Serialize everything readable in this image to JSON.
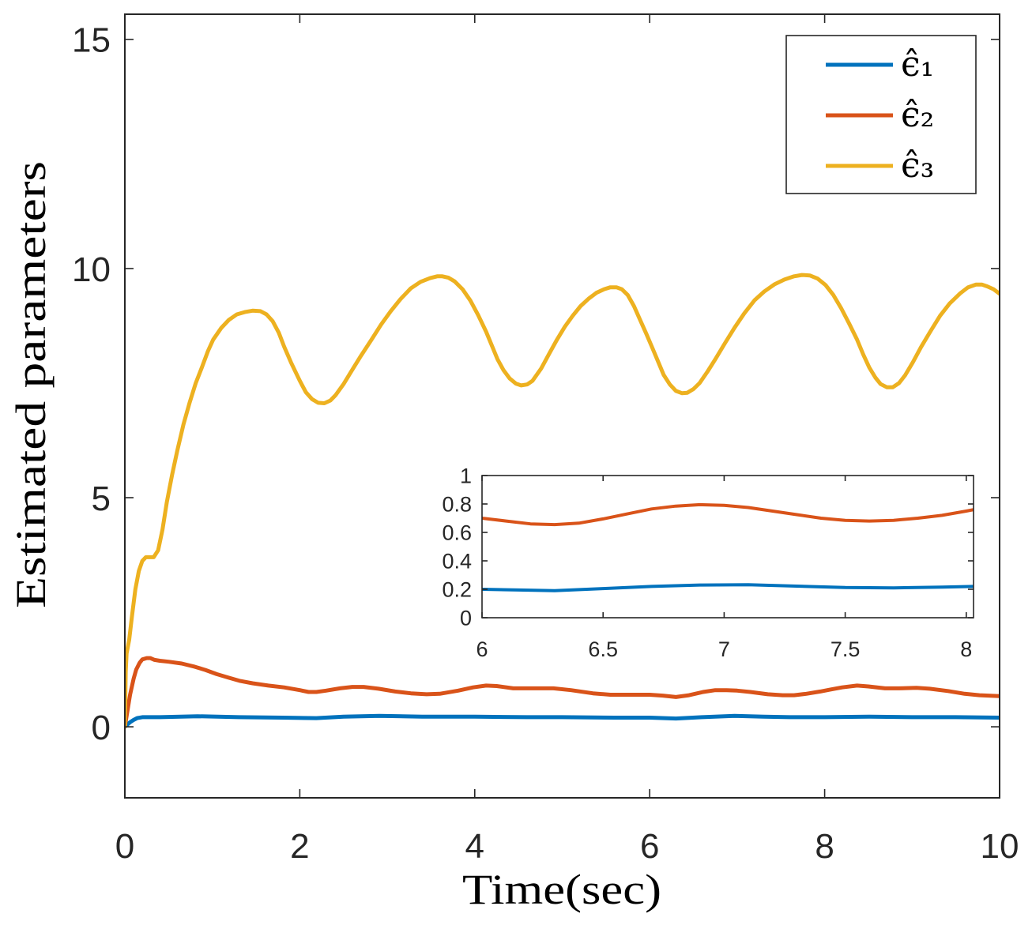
{
  "chart_data": [
    {
      "type": "line",
      "title": "",
      "xlabel": "Time(sec)",
      "ylabel": "Estimated parameters",
      "xlim": [
        0,
        10
      ],
      "ylim": [
        -1.55,
        15.55
      ],
      "xticks": [
        0,
        2,
        4,
        6,
        8,
        10
      ],
      "yticks": [
        0,
        5,
        10,
        15
      ],
      "grid": false,
      "legend": "top-right",
      "series": [
        {
          "name": "ϵ̂₁",
          "color": "#0072BD",
          "points": [
            [
              0,
              0
            ],
            [
              0.03,
              0.05
            ],
            [
              0.06,
              0.1
            ],
            [
              0.1,
              0.15
            ],
            [
              0.14,
              0.19
            ],
            [
              0.2,
              0.21
            ],
            [
              0.4,
              0.21
            ],
            [
              0.83,
              0.23
            ],
            [
              1.3,
              0.21
            ],
            [
              1.8,
              0.2
            ],
            [
              2.19,
              0.19
            ],
            [
              2.5,
              0.22
            ],
            [
              2.91,
              0.24
            ],
            [
              3.4,
              0.22
            ],
            [
              4.0,
              0.22
            ],
            [
              4.6,
              0.21
            ],
            [
              5.0,
              0.21
            ],
            [
              5.6,
              0.2
            ],
            [
              6.0,
              0.2
            ],
            [
              6.3,
              0.18
            ],
            [
              6.6,
              0.21
            ],
            [
              6.97,
              0.24
            ],
            [
              7.3,
              0.22
            ],
            [
              7.6,
              0.21
            ],
            [
              8.0,
              0.21
            ],
            [
              8.51,
              0.22
            ],
            [
              9.0,
              0.21
            ],
            [
              9.5,
              0.21
            ],
            [
              10,
              0.2
            ]
          ]
        },
        {
          "name": "ϵ̂₂",
          "color": "#D95319",
          "points": [
            [
              0,
              0
            ],
            [
              0.03,
              0.35
            ],
            [
              0.06,
              0.7
            ],
            [
              0.1,
              1.05
            ],
            [
              0.13,
              1.25
            ],
            [
              0.17,
              1.4
            ],
            [
              0.2,
              1.47
            ],
            [
              0.25,
              1.5
            ],
            [
              0.29,
              1.5
            ],
            [
              0.34,
              1.46
            ],
            [
              0.4,
              1.44
            ],
            [
              0.5,
              1.42
            ],
            [
              0.65,
              1.38
            ],
            [
              0.8,
              1.31
            ],
            [
              0.92,
              1.24
            ],
            [
              1.05,
              1.15
            ],
            [
              1.19,
              1.07
            ],
            [
              1.32,
              1.0
            ],
            [
              1.46,
              0.95
            ],
            [
              1.64,
              0.9
            ],
            [
              1.82,
              0.86
            ],
            [
              2.0,
              0.8
            ],
            [
              2.1,
              0.76
            ],
            [
              2.19,
              0.76
            ],
            [
              2.3,
              0.79
            ],
            [
              2.46,
              0.84
            ],
            [
              2.6,
              0.87
            ],
            [
              2.73,
              0.87
            ],
            [
              2.9,
              0.83
            ],
            [
              3.09,
              0.77
            ],
            [
              3.27,
              0.73
            ],
            [
              3.45,
              0.71
            ],
            [
              3.6,
              0.72
            ],
            [
              3.81,
              0.79
            ],
            [
              3.98,
              0.86
            ],
            [
              4.13,
              0.9
            ],
            [
              4.25,
              0.89
            ],
            [
              4.44,
              0.84
            ],
            [
              4.65,
              0.84
            ],
            [
              4.9,
              0.84
            ],
            [
              5.1,
              0.8
            ],
            [
              5.35,
              0.73
            ],
            [
              5.55,
              0.7
            ],
            [
              5.8,
              0.7
            ],
            [
              6.0,
              0.7
            ],
            [
              6.15,
              0.68
            ],
            [
              6.3,
              0.65
            ],
            [
              6.45,
              0.69
            ],
            [
              6.61,
              0.76
            ],
            [
              6.75,
              0.8
            ],
            [
              6.88,
              0.8
            ],
            [
              7.0,
              0.79
            ],
            [
              7.15,
              0.76
            ],
            [
              7.35,
              0.71
            ],
            [
              7.52,
              0.69
            ],
            [
              7.65,
              0.69
            ],
            [
              7.79,
              0.72
            ],
            [
              7.95,
              0.77
            ],
            [
              8.06,
              0.81
            ],
            [
              8.2,
              0.86
            ],
            [
              8.37,
              0.9
            ],
            [
              8.5,
              0.88
            ],
            [
              8.69,
              0.84
            ],
            [
              8.85,
              0.84
            ],
            [
              9.05,
              0.85
            ],
            [
              9.2,
              0.83
            ],
            [
              9.41,
              0.78
            ],
            [
              9.6,
              0.72
            ],
            [
              9.77,
              0.69
            ],
            [
              10,
              0.67
            ]
          ]
        },
        {
          "name": "ϵ̂₃",
          "color": "#EDB120",
          "points": [
            [
              0,
              0
            ],
            [
              0.01,
              1.2
            ],
            [
              0.02,
              1.6
            ],
            [
              0.05,
              1.9
            ],
            [
              0.08,
              2.4
            ],
            [
              0.12,
              3.0
            ],
            [
              0.16,
              3.4
            ],
            [
              0.2,
              3.62
            ],
            [
              0.24,
              3.7
            ],
            [
              0.33,
              3.7
            ],
            [
              0.38,
              3.85
            ],
            [
              0.43,
              4.3
            ],
            [
              0.48,
              4.9
            ],
            [
              0.54,
              5.5
            ],
            [
              0.6,
              6.03
            ],
            [
              0.67,
              6.6
            ],
            [
              0.74,
              7.07
            ],
            [
              0.81,
              7.5
            ],
            [
              0.88,
              7.84
            ],
            [
              0.95,
              8.2
            ],
            [
              1.01,
              8.45
            ],
            [
              1.1,
              8.7
            ],
            [
              1.19,
              8.88
            ],
            [
              1.28,
              9.0
            ],
            [
              1.37,
              9.05
            ],
            [
              1.46,
              9.08
            ],
            [
              1.55,
              9.07
            ],
            [
              1.62,
              9.0
            ],
            [
              1.69,
              8.85
            ],
            [
              1.76,
              8.6
            ],
            [
              1.82,
              8.3
            ],
            [
              1.9,
              7.95
            ],
            [
              2.0,
              7.55
            ],
            [
              2.07,
              7.3
            ],
            [
              2.14,
              7.15
            ],
            [
              2.21,
              7.07
            ],
            [
              2.28,
              7.06
            ],
            [
              2.35,
              7.12
            ],
            [
              2.41,
              7.24
            ],
            [
              2.5,
              7.48
            ],
            [
              2.59,
              7.76
            ],
            [
              2.7,
              8.1
            ],
            [
              2.82,
              8.45
            ],
            [
              2.93,
              8.78
            ],
            [
              3.04,
              9.07
            ],
            [
              3.15,
              9.33
            ],
            [
              3.27,
              9.57
            ],
            [
              3.38,
              9.71
            ],
            [
              3.49,
              9.79
            ],
            [
              3.57,
              9.83
            ],
            [
              3.63,
              9.83
            ],
            [
              3.7,
              9.8
            ],
            [
              3.77,
              9.72
            ],
            [
              3.86,
              9.55
            ],
            [
              3.95,
              9.3
            ],
            [
              4.04,
              8.98
            ],
            [
              4.13,
              8.62
            ],
            [
              4.2,
              8.3
            ],
            [
              4.26,
              8.02
            ],
            [
              4.33,
              7.78
            ],
            [
              4.4,
              7.6
            ],
            [
              4.47,
              7.49
            ],
            [
              4.53,
              7.45
            ],
            [
              4.6,
              7.47
            ],
            [
              4.66,
              7.55
            ],
            [
              4.76,
              7.82
            ],
            [
              4.85,
              8.14
            ],
            [
              4.94,
              8.45
            ],
            [
              5.03,
              8.73
            ],
            [
              5.12,
              8.97
            ],
            [
              5.21,
              9.18
            ],
            [
              5.3,
              9.34
            ],
            [
              5.39,
              9.47
            ],
            [
              5.48,
              9.55
            ],
            [
              5.55,
              9.59
            ],
            [
              5.62,
              9.59
            ],
            [
              5.68,
              9.55
            ],
            [
              5.75,
              9.42
            ],
            [
              5.82,
              9.18
            ],
            [
              5.89,
              8.88
            ],
            [
              5.96,
              8.58
            ],
            [
              6.03,
              8.27
            ],
            [
              6.1,
              7.95
            ],
            [
              6.16,
              7.68
            ],
            [
              6.23,
              7.47
            ],
            [
              6.3,
              7.33
            ],
            [
              6.37,
              7.28
            ],
            [
              6.43,
              7.29
            ],
            [
              6.5,
              7.37
            ],
            [
              6.57,
              7.5
            ],
            [
              6.66,
              7.75
            ],
            [
              6.75,
              8.02
            ],
            [
              6.86,
              8.37
            ],
            [
              6.97,
              8.71
            ],
            [
              7.08,
              9.02
            ],
            [
              7.2,
              9.31
            ],
            [
              7.31,
              9.5
            ],
            [
              7.43,
              9.66
            ],
            [
              7.54,
              9.76
            ],
            [
              7.65,
              9.83
            ],
            [
              7.74,
              9.86
            ],
            [
              7.83,
              9.85
            ],
            [
              7.92,
              9.78
            ],
            [
              8.01,
              9.64
            ],
            [
              8.1,
              9.42
            ],
            [
              8.19,
              9.13
            ],
            [
              8.28,
              8.8
            ],
            [
              8.37,
              8.45
            ],
            [
              8.44,
              8.13
            ],
            [
              8.51,
              7.84
            ],
            [
              8.58,
              7.62
            ],
            [
              8.64,
              7.48
            ],
            [
              8.71,
              7.41
            ],
            [
              8.78,
              7.41
            ],
            [
              8.85,
              7.5
            ],
            [
              8.92,
              7.67
            ],
            [
              9.01,
              7.96
            ],
            [
              9.1,
              8.28
            ],
            [
              9.21,
              8.63
            ],
            [
              9.32,
              8.97
            ],
            [
              9.43,
              9.24
            ],
            [
              9.55,
              9.46
            ],
            [
              9.64,
              9.59
            ],
            [
              9.73,
              9.65
            ],
            [
              9.8,
              9.65
            ],
            [
              9.86,
              9.61
            ],
            [
              9.93,
              9.55
            ],
            [
              10,
              9.45
            ]
          ]
        }
      ]
    },
    {
      "type": "line",
      "title": "",
      "xlim": [
        6,
        8.03
      ],
      "ylim": [
        0,
        1
      ],
      "xticks": [
        6,
        6.5,
        7,
        7.5,
        8
      ],
      "yticks": [
        0,
        0.2,
        0.4,
        0.6,
        0.8,
        1
      ],
      "grid": false,
      "series": [
        {
          "color": "#0072BD",
          "points": [
            [
              6.0,
              0.2
            ],
            [
              6.15,
              0.195
            ],
            [
              6.3,
              0.19
            ],
            [
              6.5,
              0.205
            ],
            [
              6.7,
              0.22
            ],
            [
              6.9,
              0.23
            ],
            [
              7.1,
              0.232
            ],
            [
              7.3,
              0.222
            ],
            [
              7.5,
              0.212
            ],
            [
              7.7,
              0.21
            ],
            [
              7.9,
              0.215
            ],
            [
              8.03,
              0.22
            ]
          ]
        },
        {
          "color": "#D95319",
          "points": [
            [
              6.0,
              0.7
            ],
            [
              6.1,
              0.68
            ],
            [
              6.2,
              0.66
            ],
            [
              6.3,
              0.655
            ],
            [
              6.4,
              0.665
            ],
            [
              6.5,
              0.695
            ],
            [
              6.6,
              0.73
            ],
            [
              6.7,
              0.765
            ],
            [
              6.8,
              0.785
            ],
            [
              6.9,
              0.795
            ],
            [
              7.0,
              0.79
            ],
            [
              7.1,
              0.775
            ],
            [
              7.2,
              0.75
            ],
            [
              7.3,
              0.725
            ],
            [
              7.4,
              0.7
            ],
            [
              7.5,
              0.685
            ],
            [
              7.6,
              0.68
            ],
            [
              7.7,
              0.685
            ],
            [
              7.8,
              0.7
            ],
            [
              7.9,
              0.72
            ],
            [
              8.0,
              0.75
            ],
            [
              8.03,
              0.76
            ]
          ]
        }
      ]
    }
  ]
}
